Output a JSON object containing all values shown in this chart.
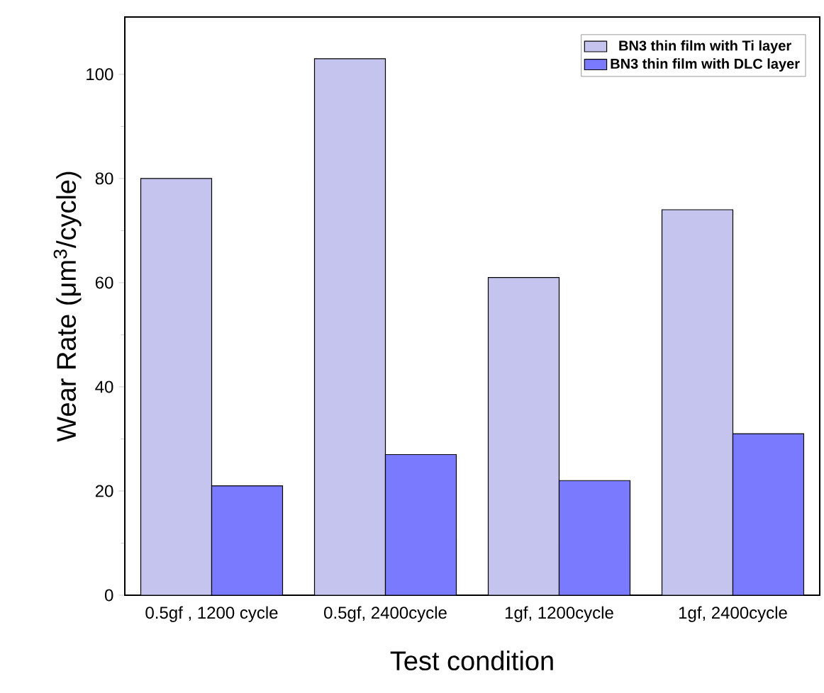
{
  "chart_data": {
    "type": "bar",
    "xlabel": "Test condition",
    "ylabel": "Wear Rate (μm$^{3}$/cycle)",
    "categories": [
      "0.5gf , 1200 cycle",
      "0.5gf, 2400cycle",
      "1gf, 1200cycle",
      "1gf, 2400cycle"
    ],
    "series": [
      {
        "name": "BN3 thin film with Ti layer",
        "color": "#c4c4ee",
        "values": [
          80,
          103,
          61,
          74
        ]
      },
      {
        "name": "BN3 thin film with DLC layer",
        "color": "#7a7aff",
        "values": [
          21,
          27,
          22,
          31
        ]
      }
    ],
    "ylim": [
      0,
      111
    ],
    "yticks": [
      0,
      20,
      40,
      60,
      80,
      100
    ],
    "grid": false,
    "legend": "top right"
  }
}
